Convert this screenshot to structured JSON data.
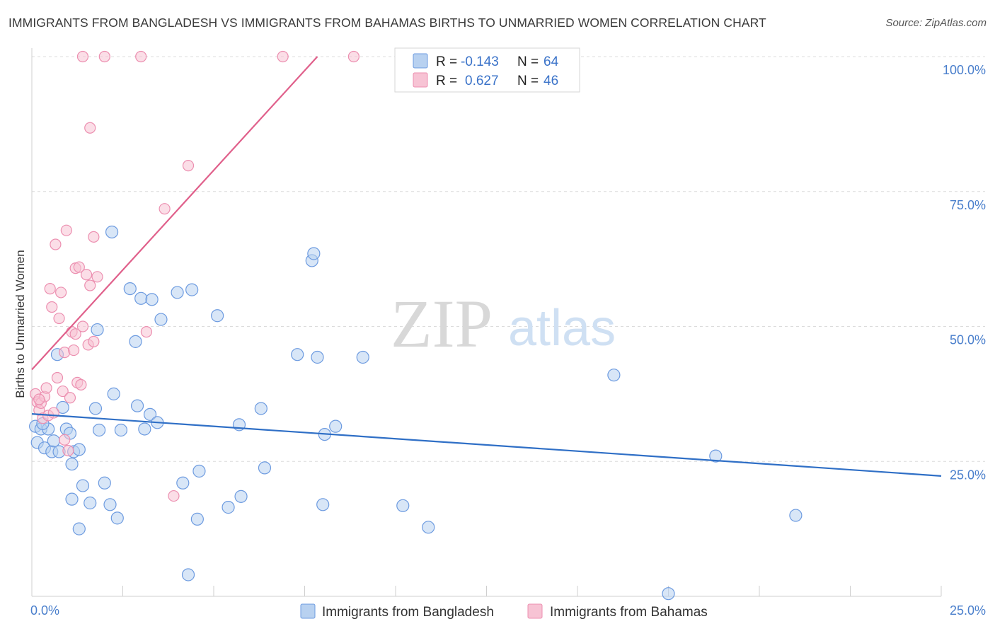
{
  "header": {
    "title": "IMMIGRANTS FROM BANGLADESH VS IMMIGRANTS FROM BAHAMAS BIRTHS TO UNMARRIED WOMEN CORRELATION CHART",
    "source": "Source: ZipAtlas.com"
  },
  "watermark": {
    "zip": "ZIP",
    "atlas": "atlas"
  },
  "legend": {
    "r_label": "R =",
    "n_label": "N =",
    "series": [
      {
        "r": "-0.143",
        "n": "64"
      },
      {
        "r": "0.627",
        "n": "46"
      }
    ]
  },
  "colors": {
    "blue_fill": "#b8d1f0",
    "blue_stroke": "#6d9be0",
    "blue_line": "#2f6fc6",
    "pink_fill": "#f7c3d4",
    "pink_stroke": "#ec8fb0",
    "pink_line": "#e0608b",
    "grid": "#dcdcdc",
    "tick_text": "#4a7fcc"
  },
  "chart_data": {
    "type": "scatter",
    "title": "IMMIGRANTS FROM BANGLADESH VS IMMIGRANTS FROM BAHAMAS BIRTHS TO UNMARRIED WOMEN CORRELATION CHART",
    "xlabel": "",
    "ylabel": "Births to Unmarried Women",
    "xlim": [
      0,
      25
    ],
    "ylim": [
      0,
      100
    ],
    "x_tick_labels": [
      "0.0%",
      "25.0%"
    ],
    "y_ticks": [
      25,
      50,
      75,
      100
    ],
    "y_tick_labels": [
      "25.0%",
      "50.0%",
      "75.0%",
      "100.0%"
    ],
    "grid": true,
    "series": [
      {
        "name": "Immigrants from Bangladesh",
        "color": "#6d9be0",
        "r": -0.143,
        "n": 64,
        "trend": {
          "x": [
            0,
            25
          ],
          "y": [
            33.8,
            22.3
          ]
        },
        "points": [
          [
            0.1,
            31.5
          ],
          [
            0.15,
            28.5
          ],
          [
            0.25,
            31.0
          ],
          [
            0.35,
            27.5
          ],
          [
            0.45,
            31.0
          ],
          [
            0.55,
            26.8
          ],
          [
            0.6,
            28.8
          ],
          [
            0.7,
            44.8
          ],
          [
            0.75,
            26.8
          ],
          [
            0.85,
            35.0
          ],
          [
            0.95,
            31.0
          ],
          [
            1.05,
            30.2
          ],
          [
            1.15,
            26.8
          ],
          [
            1.3,
            27.2
          ],
          [
            1.4,
            20.5
          ],
          [
            1.1,
            24.5
          ],
          [
            1.1,
            18.0
          ],
          [
            1.3,
            12.5
          ],
          [
            1.6,
            17.3
          ],
          [
            1.75,
            34.8
          ],
          [
            1.85,
            30.8
          ],
          [
            2.0,
            21.0
          ],
          [
            2.15,
            17.0
          ],
          [
            2.25,
            37.5
          ],
          [
            2.35,
            14.5
          ],
          [
            2.45,
            30.8
          ],
          [
            2.2,
            67.5
          ],
          [
            2.7,
            57.0
          ],
          [
            2.85,
            47.2
          ],
          [
            2.9,
            35.3
          ],
          [
            3.0,
            55.2
          ],
          [
            3.1,
            31.0
          ],
          [
            3.25,
            33.7
          ],
          [
            3.3,
            55.0
          ],
          [
            3.45,
            32.2
          ],
          [
            3.55,
            51.3
          ],
          [
            1.8,
            49.4
          ],
          [
            4.0,
            56.3
          ],
          [
            4.15,
            21.0
          ],
          [
            4.3,
            4.0
          ],
          [
            4.4,
            56.8
          ],
          [
            4.55,
            14.3
          ],
          [
            4.6,
            23.2
          ],
          [
            5.1,
            52.0
          ],
          [
            5.4,
            16.5
          ],
          [
            5.7,
            31.8
          ],
          [
            5.75,
            18.5
          ],
          [
            6.3,
            34.8
          ],
          [
            6.4,
            23.8
          ],
          [
            7.3,
            44.8
          ],
          [
            7.7,
            62.2
          ],
          [
            7.75,
            63.5
          ],
          [
            7.85,
            44.3
          ],
          [
            8.0,
            17.0
          ],
          [
            8.05,
            30.0
          ],
          [
            8.35,
            31.5
          ],
          [
            9.1,
            44.3
          ],
          [
            10.2,
            16.8
          ],
          [
            10.9,
            12.8
          ],
          [
            16.0,
            41.0
          ],
          [
            17.5,
            0.5
          ],
          [
            18.8,
            26.0
          ],
          [
            21.0,
            15.0
          ],
          [
            0.3,
            32.0
          ]
        ]
      },
      {
        "name": "Immigrants from Bahamas",
        "color": "#ec8fb0",
        "r": 0.627,
        "n": 46,
        "trend": {
          "x": [
            0,
            7.85
          ],
          "y": [
            42.0,
            100.0
          ]
        },
        "points": [
          [
            0.1,
            37.5
          ],
          [
            0.15,
            36.0
          ],
          [
            0.2,
            34.5
          ],
          [
            0.25,
            35.8
          ],
          [
            0.3,
            33.0
          ],
          [
            0.35,
            37.0
          ],
          [
            0.4,
            38.6
          ],
          [
            0.45,
            33.5
          ],
          [
            0.55,
            53.6
          ],
          [
            0.5,
            57.0
          ],
          [
            0.65,
            65.2
          ],
          [
            0.7,
            40.5
          ],
          [
            0.75,
            51.5
          ],
          [
            0.8,
            56.3
          ],
          [
            0.85,
            38.0
          ],
          [
            0.9,
            45.2
          ],
          [
            0.95,
            67.8
          ],
          [
            1.0,
            27.0
          ],
          [
            1.05,
            36.8
          ],
          [
            1.1,
            49.0
          ],
          [
            1.15,
            45.6
          ],
          [
            1.2,
            60.8
          ],
          [
            1.25,
            39.6
          ],
          [
            1.3,
            61.0
          ],
          [
            1.35,
            39.2
          ],
          [
            1.4,
            50.0
          ],
          [
            1.5,
            59.6
          ],
          [
            1.55,
            46.6
          ],
          [
            1.6,
            57.6
          ],
          [
            1.7,
            47.2
          ],
          [
            1.8,
            59.2
          ],
          [
            1.4,
            100.0
          ],
          [
            1.6,
            86.8
          ],
          [
            1.7,
            66.6
          ],
          [
            2.0,
            100.0
          ],
          [
            3.0,
            100.0
          ],
          [
            3.15,
            49.0
          ],
          [
            3.65,
            71.8
          ],
          [
            3.9,
            18.6
          ],
          [
            4.3,
            79.8
          ],
          [
            6.9,
            100.0
          ],
          [
            8.85,
            100.0
          ],
          [
            0.2,
            36.5
          ],
          [
            0.6,
            34.0
          ],
          [
            0.9,
            29.0
          ],
          [
            1.2,
            48.6
          ]
        ]
      }
    ]
  }
}
